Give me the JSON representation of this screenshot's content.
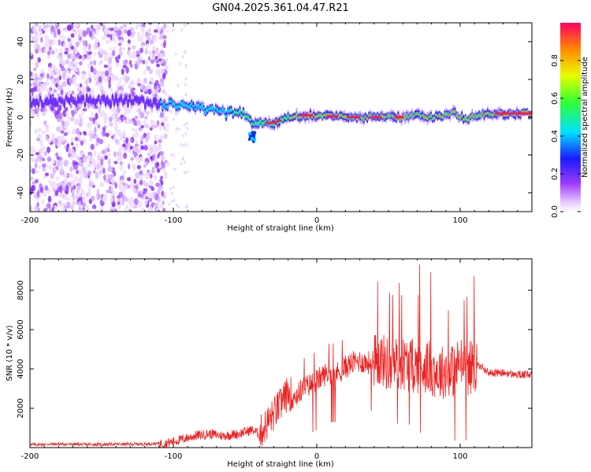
{
  "title": "GN04.2025.361.04.47.R21",
  "chart_data": [
    {
      "type": "heatmap",
      "description": "Spectrogram of occultation signal",
      "xlabel": "Height of straight line (km)",
      "ylabel": "Frequency (Hz)",
      "xlim": [
        -200,
        150
      ],
      "ylim": [
        -50,
        50
      ],
      "xticks": [
        "-200",
        "-100",
        "0",
        "100"
      ],
      "yticks": [
        "-40",
        "-20",
        "0",
        "20",
        "40"
      ],
      "ridge": {
        "heights_km": [
          -200,
          -150,
          -120,
          -105,
          -90,
          -80,
          -70,
          -60,
          -50,
          -45,
          -40,
          -30,
          -20,
          -10,
          0,
          20,
          40,
          60,
          70,
          80,
          90,
          95,
          100,
          105,
          110,
          120,
          150
        ],
        "frequency_hz": [
          8,
          9,
          8,
          7,
          6,
          4,
          3,
          2,
          1,
          -3,
          -3,
          -3,
          0,
          1,
          1,
          0,
          0,
          0,
          1,
          0,
          1,
          3,
          0,
          -1,
          1,
          2,
          2
        ]
      },
      "colorbar": {
        "label": "Normalized spectral amplitude",
        "range": [
          0.0,
          1.0
        ],
        "ticks": [
          "0.0",
          "0.2",
          "0.4",
          "0.6",
          "0.8"
        ]
      }
    },
    {
      "type": "line",
      "xlabel": "Height of straight line (km)",
      "ylabel": "SNR (10 * v/v)",
      "xlim": [
        -200,
        150
      ],
      "ylim": [
        0,
        9600
      ],
      "xticks": [
        "-200",
        "-100",
        "0",
        "100"
      ],
      "yticks": [
        "2000",
        "4000",
        "6000",
        "8000"
      ],
      "series": [
        {
          "name": "SNR",
          "color": "#ee2222",
          "x": [
            -200,
            -180,
            -160,
            -140,
            -120,
            -105,
            -95,
            -85,
            -75,
            -65,
            -55,
            -45,
            -40,
            -35,
            -30,
            -25,
            -20,
            -15,
            -10,
            -5,
            0,
            5,
            10,
            15,
            20,
            25,
            30,
            35,
            40,
            45,
            50,
            55,
            60,
            65,
            70,
            75,
            80,
            85,
            90,
            95,
            100,
            105,
            110,
            115,
            120,
            130,
            140,
            150
          ],
          "y": [
            150,
            180,
            160,
            170,
            180,
            220,
            400,
            600,
            700,
            600,
            700,
            900,
            700,
            1200,
            1700,
            2200,
            2800,
            2600,
            3000,
            3200,
            3400,
            3700,
            3800,
            3800,
            4100,
            4300,
            4400,
            4300,
            4400,
            4500,
            4200,
            4300,
            4300,
            4200,
            4100,
            4200,
            4000,
            3800,
            3900,
            3900,
            4300,
            4000,
            4200,
            4100,
            3800,
            3800,
            3700,
            3700
          ]
        }
      ]
    }
  ]
}
